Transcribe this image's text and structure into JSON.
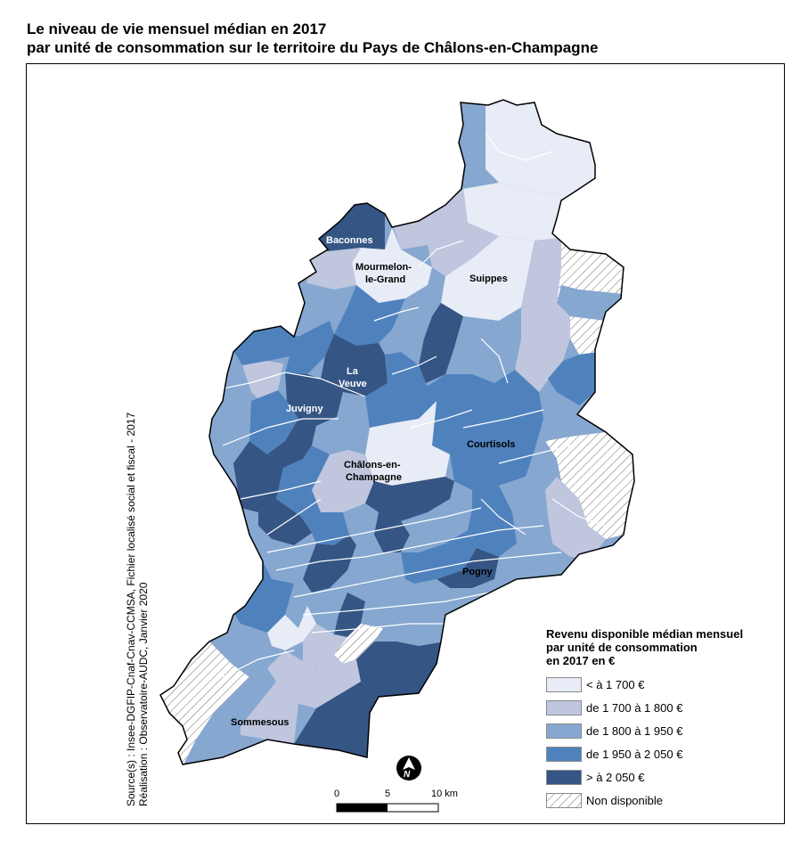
{
  "title": {
    "line1": "Le niveau de vie mensuel médian en 2017",
    "line2": "par unité de consommation sur le territoire du Pays de Châlons-en-Champagne"
  },
  "places": {
    "baconnes": "Baconnes",
    "mourmelon_line1": "Mourmelon-",
    "mourmelon_line2": "le-Grand",
    "suippes": "Suippes",
    "la_veuve_line1": "La",
    "la_veuve_line2": "Veuve",
    "juvigny": "Juvigny",
    "courtisols": "Courtisols",
    "chalons_line1": "Châlons-en-",
    "chalons_line2": "Champagne",
    "pogny": "Pogny",
    "sommesous": "Sommesous"
  },
  "legend": {
    "title_line1": "Revenu disponible médian mensuel",
    "title_line2": "par unité de consommation",
    "title_line3": "en 2017 en €",
    "classes": [
      {
        "label": "< à 1 700 €",
        "color": "#e7ecf6"
      },
      {
        "label": "de 1 700 à 1 800 €",
        "color": "#bfc6de"
      },
      {
        "label": "de 1 800 à 1 950 €",
        "color": "#86a7d0"
      },
      {
        "label": "de 1 950 à 2 050 €",
        "color": "#4f82bd"
      },
      {
        "label": "> à 2 050 €",
        "color": "#355584"
      },
      {
        "label": "Non disponible",
        "color": "#ffffff"
      }
    ]
  },
  "source": {
    "line1": "Source(s) : Insee-DGFIP-Cnaf-Cnav-CCMSA, Fichier localisé social et fiscal - 2017",
    "line2": "Réalisation : Observatoire-AUDC, Janvier 2020"
  },
  "scale": {
    "tick0": "0",
    "tick1": "5",
    "tick2": "10 km"
  },
  "north_arrow": {
    "letter": "N",
    "icon": "north-arrow-icon"
  },
  "map_colors": {
    "c1": "#e7ecf6",
    "c2": "#bfc6de",
    "c3": "#86a7d0",
    "c4": "#4f82bd",
    "c5": "#355584"
  }
}
